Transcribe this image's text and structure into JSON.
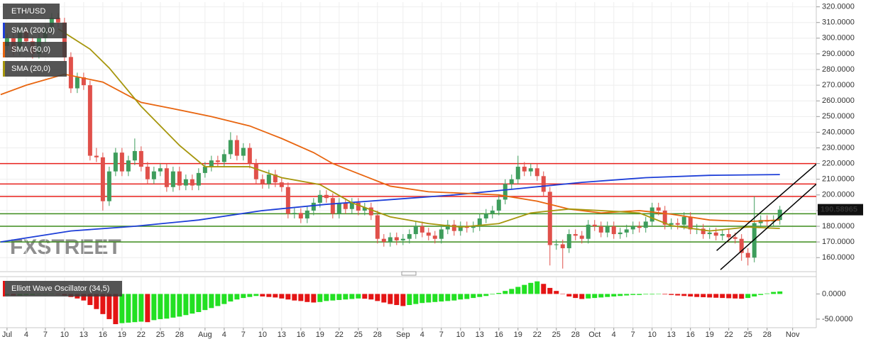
{
  "chart_data": {
    "type": "candlestick",
    "title": "ETH/USD",
    "watermark": "FXSTREET",
    "up_color": "#3e9d5c",
    "down_color": "#e0504a",
    "candles": {
      "x": [
        0,
        1,
        2,
        3,
        4,
        5,
        6,
        7,
        8,
        9,
        10,
        11,
        12,
        13,
        14,
        15,
        16,
        17,
        18,
        19,
        20,
        21,
        22,
        23,
        24,
        25,
        26,
        27,
        28,
        29,
        30,
        31,
        32,
        33,
        34,
        35,
        36,
        37,
        38,
        39,
        40,
        41,
        42,
        43,
        44,
        45,
        46,
        47,
        48,
        49,
        50,
        51,
        52,
        53,
        54,
        55,
        56,
        57,
        58,
        59,
        60,
        61,
        62,
        63,
        64,
        65,
        66,
        67,
        68,
        69,
        70,
        71,
        72,
        73,
        74,
        75,
        76,
        77,
        78,
        79,
        80,
        81,
        82,
        83,
        84,
        85,
        86,
        87,
        88,
        89,
        90,
        91,
        92,
        93,
        94,
        95,
        96,
        97,
        98,
        99,
        100,
        101,
        102,
        103,
        104,
        105,
        106,
        107,
        108,
        109,
        110,
        111,
        112,
        113,
        114,
        115,
        116,
        117,
        118,
        119,
        120,
        121
      ],
      "open": [
        295,
        300,
        292,
        305,
        298,
        290,
        300,
        306,
        313,
        310,
        288,
        268,
        275,
        270,
        225,
        224,
        196,
        215,
        227,
        215,
        222,
        228,
        218,
        210,
        215,
        217,
        205,
        215,
        206,
        210,
        206,
        214,
        218,
        222,
        221,
        226,
        235,
        225,
        230,
        220,
        210,
        207,
        213,
        208,
        205,
        188,
        188.5,
        185,
        190,
        195,
        200,
        198,
        188,
        195,
        191,
        195,
        190,
        192,
        187,
        172,
        170,
        173,
        171,
        172,
        175,
        180,
        176,
        174,
        172,
        178,
        181,
        177,
        180,
        179,
        180,
        185,
        188,
        190,
        197,
        207,
        210,
        218,
        215,
        217,
        212,
        202,
        168,
        168.5,
        166,
        175,
        174,
        172,
        181,
        180,
        176,
        180,
        175,
        176,
        178,
        180,
        179,
        183,
        192,
        190,
        181,
        182,
        181,
        186,
        178,
        178.5,
        175,
        176,
        174,
        175,
        173,
        172,
        163,
        160,
        182,
        184,
        183,
        184
      ],
      "high": [
        303,
        303,
        308,
        308,
        301,
        303,
        309,
        316,
        316,
        313,
        291,
        278,
        278,
        273,
        230,
        227,
        218,
        230,
        230,
        225,
        236,
        231,
        221,
        218,
        220,
        220,
        218,
        218,
        213,
        213,
        217,
        221,
        225,
        225,
        229,
        240,
        238,
        233,
        233,
        223,
        213,
        216,
        216,
        211,
        208,
        191.5,
        191.5,
        193,
        198,
        203,
        203,
        201,
        198,
        198,
        198,
        198,
        195,
        195,
        190,
        175,
        176,
        176,
        175,
        178,
        183,
        183,
        179,
        177,
        181,
        184,
        184,
        183,
        183,
        183,
        188,
        191,
        193,
        200,
        210,
        213,
        225,
        221,
        220,
        220,
        215,
        205,
        171.5,
        171.5,
        178,
        178,
        177,
        184,
        184,
        183,
        183,
        183,
        179,
        181,
        183,
        183,
        186,
        195,
        195,
        193,
        185,
        185,
        189,
        189,
        181.5,
        181.5,
        179,
        179,
        178,
        178,
        176,
        175,
        166,
        199,
        187,
        187,
        187,
        193
      ],
      "low": [
        292,
        289,
        289,
        295,
        287,
        287,
        297,
        303,
        307,
        285,
        265,
        265,
        267,
        222,
        221,
        190,
        193,
        212,
        212,
        212,
        219,
        215,
        207,
        207,
        212,
        202,
        202,
        203,
        203,
        203,
        203,
        211,
        215,
        218,
        218,
        223,
        222,
        222,
        217,
        207,
        204,
        204,
        205,
        202,
        185,
        185,
        182,
        182,
        187,
        192,
        195,
        185,
        185,
        188,
        188,
        187,
        187,
        184,
        169,
        167,
        167,
        168,
        168,
        169,
        172,
        173,
        171,
        169,
        169,
        175,
        174,
        174,
        176,
        176,
        177,
        182,
        185,
        187,
        194,
        204,
        207,
        212,
        212,
        209,
        199,
        155,
        165,
        153,
        163,
        171,
        169,
        169,
        177,
        173,
        173,
        172,
        172,
        173,
        175,
        176,
        176,
        180,
        187,
        178,
        178,
        178,
        178,
        175,
        175,
        172,
        172,
        171,
        171,
        170,
        169,
        158,
        155,
        157,
        179,
        180,
        180,
        181
      ],
      "close": [
        300,
        292,
        305,
        298,
        290,
        300,
        306,
        313,
        310,
        288,
        268,
        275,
        270,
        225,
        224,
        196,
        215,
        227,
        215,
        222,
        228,
        218,
        210,
        215,
        217,
        205,
        215,
        206,
        210,
        206,
        214,
        218,
        222,
        221,
        226,
        235,
        225,
        230,
        220,
        210,
        207,
        213,
        208,
        205,
        188,
        188.5,
        185,
        190,
        195,
        200,
        198,
        188,
        195,
        191,
        195,
        190,
        192,
        187,
        172,
        170,
        173,
        171,
        172,
        175,
        180,
        176,
        174,
        172,
        178,
        181,
        177,
        180,
        179,
        180,
        185,
        188,
        190,
        197,
        207,
        210,
        218,
        215,
        217,
        212,
        202,
        168,
        168.5,
        166,
        175,
        174,
        172,
        181,
        180,
        176,
        180,
        175,
        176,
        178,
        180,
        179,
        183,
        192,
        190,
        181,
        182,
        181,
        186,
        178,
        178.5,
        175,
        176,
        174,
        175,
        173,
        172,
        163,
        160,
        182,
        184,
        183,
        184,
        190.6
      ]
    },
    "series": [
      {
        "name": "SMA (200,0)",
        "color": "#1e3fd8",
        "x": [
          -1,
          10,
          20,
          30,
          40,
          50,
          60,
          70,
          80,
          90,
          100,
          110,
          121
        ],
        "values": [
          170,
          177,
          180,
          184,
          190,
          194,
          197,
          200,
          204,
          208,
          211,
          212.5,
          213
        ]
      },
      {
        "name": "SMA (50,0)",
        "color": "#e8650f",
        "x": [
          -1,
          3,
          9,
          15,
          21,
          26,
          32,
          38,
          43,
          48,
          51,
          56,
          60,
          66,
          72,
          77,
          83,
          88,
          93,
          99,
          104,
          110,
          116,
          121
        ],
        "values": [
          264,
          270,
          277,
          272,
          259,
          255,
          250,
          244,
          236,
          227,
          220,
          212,
          205.6,
          202,
          201,
          200,
          196,
          191,
          188.5,
          190,
          187.7,
          184,
          183,
          184
        ]
      },
      {
        "name": "SMA (20,0)",
        "color": "#a6960c",
        "x": [
          8,
          13,
          16,
          21,
          27,
          31,
          38,
          43,
          49,
          54,
          60,
          66,
          71,
          77,
          82,
          88,
          93,
          99,
          104,
          110,
          116,
          121
        ],
        "values": [
          306,
          293,
          281,
          256.5,
          231.6,
          218,
          218,
          211,
          206.6,
          195,
          186,
          181.7,
          179.5,
          181.7,
          188.5,
          191,
          190,
          188.5,
          180.4,
          177,
          179.5,
          178.6
        ]
      }
    ],
    "hlines": [
      {
        "value": 220,
        "color": "#e8201c"
      },
      {
        "value": 207,
        "color": "#e8201c"
      },
      {
        "value": 199,
        "color": "#e8201c"
      },
      {
        "value": 188,
        "color": "#3c8c1c"
      },
      {
        "value": 180,
        "color": "#3c8c1c"
      },
      {
        "value": 170,
        "color": "#3c8c1c"
      }
    ],
    "trendlines": [
      {
        "color": "#000000",
        "x": [
          111.1,
          126.9
        ],
        "values": [
          164.5,
          220.3
        ]
      },
      {
        "color": "#000000",
        "x": [
          111.7,
          126.9
        ],
        "values": [
          152.3,
          207.6
        ]
      }
    ],
    "last_price": 190.58965,
    "xlim": [
      -1.1,
      126.7
    ],
    "ylim": [
      151.5,
      323
    ],
    "yticks": [
      {
        "value": 320,
        "label": "320.0000"
      },
      {
        "value": 310,
        "label": "310.0000"
      },
      {
        "value": 300,
        "label": "300.0000"
      },
      {
        "value": 290,
        "label": "290.0000"
      },
      {
        "value": 280,
        "label": "280.0000"
      },
      {
        "value": 270,
        "label": "270.0000"
      },
      {
        "value": 260,
        "label": "260.0000"
      },
      {
        "value": 250,
        "label": "250.0000"
      },
      {
        "value": 240,
        "label": "240.0000"
      },
      {
        "value": 230,
        "label": "230.0000"
      },
      {
        "value": 220,
        "label": "220.0000"
      },
      {
        "value": 210,
        "label": "210.0000"
      },
      {
        "value": 200,
        "label": "200.0000"
      },
      {
        "value": 190,
        "label": "190.0000"
      },
      {
        "value": 180,
        "label": "180.0000"
      },
      {
        "value": 170,
        "label": "170.0000"
      },
      {
        "value": 160,
        "label": "160.0000"
      }
    ],
    "xticks": [
      {
        "value": 0,
        "label": "Jul"
      },
      {
        "value": 3,
        "label": "4"
      },
      {
        "value": 6,
        "label": "7"
      },
      {
        "value": 9,
        "label": "10"
      },
      {
        "value": 12,
        "label": "13"
      },
      {
        "value": 15,
        "label": "16"
      },
      {
        "value": 18,
        "label": "19"
      },
      {
        "value": 21,
        "label": "22"
      },
      {
        "value": 24,
        "label": "25"
      },
      {
        "value": 27,
        "label": "28"
      },
      {
        "value": 31,
        "label": "Aug"
      },
      {
        "value": 34,
        "label": "4"
      },
      {
        "value": 37,
        "label": "7"
      },
      {
        "value": 40,
        "label": "10"
      },
      {
        "value": 43,
        "label": "13"
      },
      {
        "value": 46,
        "label": "16"
      },
      {
        "value": 49,
        "label": "19"
      },
      {
        "value": 52,
        "label": "22"
      },
      {
        "value": 55,
        "label": "25"
      },
      {
        "value": 58,
        "label": "28"
      },
      {
        "value": 62,
        "label": "Sep"
      },
      {
        "value": 65,
        "label": "4"
      },
      {
        "value": 68,
        "label": "7"
      },
      {
        "value": 71,
        "label": "10"
      },
      {
        "value": 74,
        "label": "13"
      },
      {
        "value": 77,
        "label": "16"
      },
      {
        "value": 80,
        "label": "19"
      },
      {
        "value": 83,
        "label": "22"
      },
      {
        "value": 86,
        "label": "25"
      },
      {
        "value": 89,
        "label": "28"
      },
      {
        "value": 92,
        "label": "Oct"
      },
      {
        "value": 95,
        "label": "4"
      },
      {
        "value": 98,
        "label": "7"
      },
      {
        "value": 101,
        "label": "10"
      },
      {
        "value": 104,
        "label": "13"
      },
      {
        "value": 107,
        "label": "16"
      },
      {
        "value": 110,
        "label": "19"
      },
      {
        "value": 113,
        "label": "22"
      },
      {
        "value": 116,
        "label": "25"
      },
      {
        "value": 119,
        "label": "28"
      },
      {
        "value": 123,
        "label": "Nov"
      }
    ],
    "grid": true,
    "oscillator": {
      "name": "Elliott Wave Oscillator (34,5)",
      "up_color": "#22e022",
      "down_color": "#e41414",
      "values": [
        -2,
        -3,
        -3,
        -2,
        -2,
        -1,
        -1,
        0,
        -1,
        -3,
        -6,
        -9,
        -13,
        -22,
        -30,
        -40,
        -50,
        -60,
        -58,
        -57,
        -56,
        -55,
        -56,
        -52,
        -50,
        -49,
        -47,
        -45,
        -42,
        -39,
        -36,
        -32,
        -28,
        -24,
        -20,
        -15,
        -11,
        -8,
        -6,
        -4,
        -5,
        -6,
        -7,
        -9,
        -11,
        -13,
        -14,
        -16,
        -17,
        -16,
        -14,
        -13,
        -12,
        -11,
        -10,
        -9,
        -9.5,
        -11,
        -14,
        -17,
        -20,
        -22,
        -24,
        -22,
        -20,
        -18,
        -17,
        -16,
        -15,
        -14,
        -13,
        -11,
        -10,
        -8,
        -6,
        -4,
        -1,
        2,
        6,
        10,
        14,
        18,
        22,
        25,
        20,
        12,
        6,
        0,
        -5,
        -8,
        -10,
        -9,
        -8,
        -7,
        -6,
        -5,
        -4,
        -3,
        -2,
        -2,
        -1,
        -1,
        0,
        -1,
        -2,
        -3,
        -4,
        -5,
        -6,
        -6.5,
        -7,
        -7.5,
        -8,
        -8.5,
        -9,
        -9.5,
        -8,
        -5,
        -2,
        1,
        4,
        5
      ],
      "ylim": [
        -67,
        33
      ],
      "yticks": [
        {
          "value": 0,
          "label": "0.0000"
        },
        {
          "value": -50,
          "label": "-50.0000"
        }
      ]
    }
  }
}
